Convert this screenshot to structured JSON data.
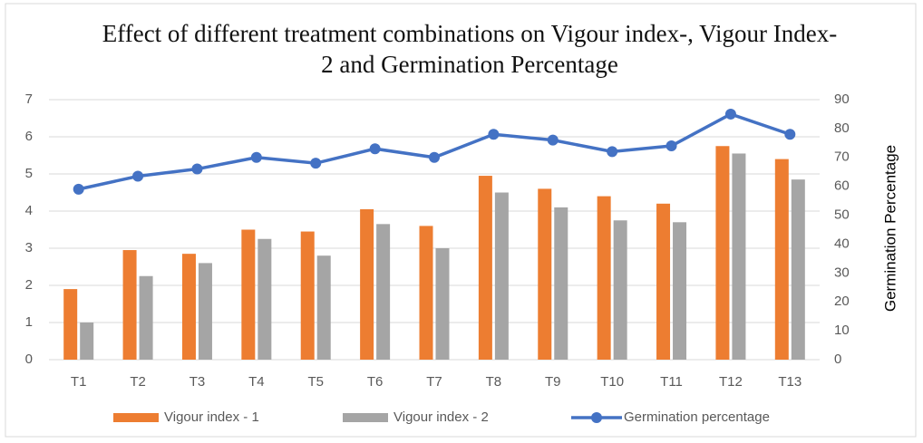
{
  "chart_data": {
    "type": "bar",
    "title": "Effect of different treatment combinations on Vigour index-, Vigour Index-2 and Germination Percentage",
    "y2label": "Germination Percentage",
    "categories": [
      "T1",
      "T2",
      "T3",
      "T4",
      "T5",
      "T6",
      "T7",
      "T8",
      "T9",
      "T10",
      "T11",
      "T12",
      "T13"
    ],
    "series": [
      {
        "name": "Vigour index - 1",
        "type": "bar",
        "color": "#ed7d31",
        "values": [
          1.9,
          2.95,
          2.85,
          3.5,
          3.45,
          4.05,
          3.6,
          4.95,
          4.6,
          4.4,
          4.2,
          5.75,
          5.4
        ]
      },
      {
        "name": "Vigour index - 2",
        "type": "bar",
        "color": "#a5a5a5",
        "values": [
          1.0,
          2.25,
          2.6,
          3.25,
          2.8,
          3.65,
          3.0,
          4.5,
          4.1,
          3.75,
          3.7,
          5.55,
          4.85
        ]
      },
      {
        "name": "Germination percentage",
        "type": "line",
        "axis": "y2",
        "color": "#4472c4",
        "values": [
          59,
          63.5,
          66,
          70,
          68,
          73,
          70,
          78,
          76,
          72,
          74,
          85,
          78
        ]
      }
    ],
    "ylim": [
      0,
      7
    ],
    "yticks": [
      0,
      1,
      2,
      3,
      4,
      5,
      6,
      7
    ],
    "y2lim": [
      0,
      90
    ],
    "y2ticks": [
      0,
      10,
      20,
      30,
      40,
      50,
      60,
      70,
      80,
      90
    ],
    "grid": true,
    "legend": "bottom"
  }
}
